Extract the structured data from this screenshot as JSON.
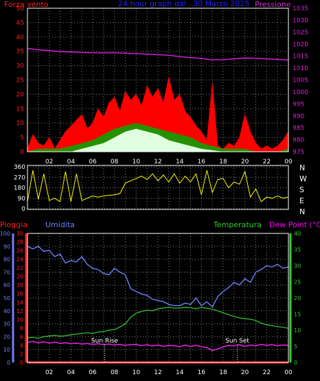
{
  "colors": {
    "wind_axis": "#ff2020",
    "title": "#2020ff",
    "pressure": "#e020e0",
    "wind_speed": "#ff0000",
    "wind_gust_area": "#00aa00",
    "wind_avg_area": "#e0ffe0",
    "direction": "#ffff00",
    "humidity": "#7080ff",
    "temperature": "#30d030",
    "dewpoint": "#e020e0",
    "rain": "#ff2020",
    "temp_axis": "#30d030",
    "dew_axis_label": "#ff00ff",
    "white": "#ffffff",
    "grid": "#8a8a8a"
  },
  "time_ticks": [
    "02",
    "04",
    "06",
    "08",
    "10",
    "12",
    "14",
    "16",
    "18",
    "20",
    "22",
    "00"
  ],
  "compass": [
    "N",
    "W",
    "S",
    "E",
    "N"
  ],
  "chart_data": [
    {
      "type": "line",
      "title": "24 hour graph dal ..30 Marzo 2025",
      "left_label": "Forza vento",
      "right_label": "Pressione",
      "left_ticks": [
        "0",
        "5",
        "10",
        "15",
        "20",
        "25",
        "30",
        "35",
        "40",
        "45",
        "50"
      ],
      "right_ticks": [
        "975",
        "980",
        "985",
        "990",
        "995",
        "1000",
        "1005",
        "1010",
        "1015",
        "1020",
        "1025",
        "1030",
        "1035"
      ],
      "ylim_left": [
        0,
        50
      ],
      "ylim_right": [
        975,
        1035
      ],
      "series": [
        {
          "axis": "right",
          "hours": [
            0,
            1,
            2,
            3,
            4,
            5,
            6,
            7,
            8,
            9,
            10,
            11,
            12,
            13,
            14,
            15,
            16,
            17,
            18,
            19,
            20,
            21,
            22,
            23,
            24
          ],
          "values": [
            1018.2,
            1017.6,
            1017.3,
            1016.9,
            1016.7,
            1016.5,
            1016.4,
            1016.3,
            1016.4,
            1016.2,
            1016.0,
            1015.8,
            1015.6,
            1015.3,
            1014.8,
            1014.4,
            1014.0,
            1013.4,
            1013.5,
            1013.8,
            1014.2,
            1014.1,
            1013.8,
            1013.6,
            1013.3
          ]
        },
        {
          "axis": "left",
          "hours": [
            0,
            0.5,
            1,
            1.5,
            2,
            2.5,
            3,
            3.5,
            4,
            4.5,
            5,
            5.5,
            6,
            6.5,
            7,
            7.5,
            8,
            8.5,
            9,
            9.5,
            10,
            10.5,
            11,
            11.5,
            12,
            12.5,
            13,
            13.5,
            14,
            14.5,
            15,
            15.5,
            16,
            16.5,
            17,
            17.5,
            18,
            18.5,
            19,
            19.5,
            20,
            20.5,
            21,
            21.5,
            22,
            22.5,
            23,
            23.5,
            24
          ],
          "values": [
            1,
            6,
            3,
            2,
            5,
            1,
            4,
            7,
            9,
            11,
            13,
            8,
            10,
            15,
            12,
            17,
            19,
            14,
            21,
            18,
            20,
            16,
            23,
            19,
            22,
            17,
            26,
            18,
            20,
            14,
            12,
            9,
            7,
            4,
            24,
            2,
            1,
            3,
            2,
            5,
            13,
            7,
            3,
            1,
            2,
            1,
            2,
            4,
            7
          ]
        },
        {
          "axis": "left",
          "hours": [
            0,
            1,
            2,
            3,
            4,
            5,
            6,
            7,
            8,
            9,
            10,
            11,
            12,
            13,
            14,
            15,
            16,
            17,
            18,
            19,
            20,
            21,
            22,
            23,
            24
          ],
          "values": [
            0,
            1,
            1,
            1,
            2,
            3,
            4,
            6,
            8,
            9,
            10,
            9,
            8,
            7,
            6,
            5,
            3,
            2,
            1,
            1,
            1,
            0,
            0,
            0,
            1
          ]
        },
        {
          "axis": "left",
          "hours": [
            0,
            2,
            4,
            5,
            6,
            7,
            8,
            9,
            10,
            11,
            12,
            13,
            14,
            15,
            16,
            18,
            20,
            22,
            24
          ],
          "values": [
            0,
            0,
            0,
            1,
            2,
            3,
            5,
            7,
            8,
            7,
            6,
            4,
            3,
            2,
            1,
            0,
            0,
            0,
            0
          ]
        }
      ]
    },
    {
      "type": "line",
      "title": "",
      "left_ticks": [
        "0",
        "90",
        "180",
        "270",
        "360"
      ],
      "ylim": [
        0,
        360
      ],
      "series": [
        {
          "hours": [
            0,
            0.5,
            1,
            1.5,
            2,
            2.5,
            3,
            3.5,
            4,
            4.5,
            5,
            5.5,
            6,
            6.5,
            7,
            7.5,
            8,
            8.5,
            9,
            9.5,
            10,
            10.5,
            11,
            11.5,
            12,
            12.5,
            13,
            13.5,
            14,
            14.5,
            15,
            15.5,
            16,
            16.5,
            17,
            17.5,
            18,
            18.5,
            19,
            19.5,
            20,
            20.5,
            21,
            21.5,
            22,
            22.5,
            23,
            23.5,
            24
          ],
          "values": [
            60,
            330,
            80,
            300,
            70,
            90,
            60,
            320,
            60,
            300,
            70,
            90,
            110,
            100,
            110,
            115,
            120,
            130,
            220,
            240,
            260,
            280,
            250,
            300,
            240,
            290,
            230,
            300,
            220,
            280,
            230,
            300,
            120,
            330,
            140,
            250,
            260,
            180,
            230,
            210,
            320,
            100,
            170,
            60,
            100,
            90,
            110,
            90,
            100
          ]
        }
      ]
    },
    {
      "type": "line",
      "title": "",
      "labels": {
        "rain": "Pioggia",
        "humidity": "Umidita",
        "temperature": "Temperatura",
        "dewpoint": "Dew Point (°C)"
      },
      "events": [
        "Sun Rise",
        "Sun Set"
      ],
      "event_hours": [
        7.1,
        19.3
      ],
      "humidity_ticks": [
        "0",
        "10",
        "20",
        "30",
        "40",
        "50",
        "60",
        "70",
        "80",
        "90",
        "100"
      ],
      "rain_ticks": [
        "0",
        "2",
        "4",
        "6",
        "8",
        "10",
        "12",
        "14",
        "16",
        "18",
        "20",
        "22",
        "24",
        "26",
        "28",
        "30"
      ],
      "temp_ticks": [
        "0",
        "5",
        "10",
        "15",
        "20",
        "25",
        "30",
        "35",
        "40"
      ],
      "ylim_humidity": [
        0,
        100
      ],
      "ylim_rain": [
        0,
        30
      ],
      "ylim_temp": [
        0,
        40
      ],
      "series": [
        {
          "name": "Umidita",
          "axis": "humidity",
          "hours": [
            0,
            0.5,
            1,
            1.5,
            2,
            2.5,
            3,
            3.5,
            4,
            4.5,
            5,
            5.5,
            6,
            6.5,
            7,
            7.5,
            8,
            8.5,
            9,
            9.5,
            10,
            10.5,
            11,
            11.5,
            12,
            12.5,
            13,
            13.5,
            14,
            14.5,
            15,
            15.5,
            16,
            16.5,
            17,
            17.5,
            18,
            18.5,
            19,
            19.5,
            20,
            20.5,
            21,
            21.5,
            22,
            22.5,
            23,
            23.5,
            24
          ],
          "values": [
            90,
            88,
            90,
            86,
            87,
            82,
            84,
            77,
            79,
            78,
            82,
            76,
            73,
            72,
            69,
            68,
            73,
            70,
            68,
            57,
            55,
            53,
            52,
            49,
            48,
            47,
            45,
            44,
            44,
            46,
            45,
            50,
            44,
            47,
            43,
            51,
            55,
            58,
            62,
            60,
            65,
            62,
            70,
            72,
            75,
            74,
            76,
            73,
            74
          ]
        },
        {
          "name": "Temperatura",
          "axis": "temp",
          "hours": [
            0,
            0.5,
            1,
            1.5,
            2,
            2.5,
            3,
            3.5,
            4,
            4.5,
            5,
            5.5,
            6,
            6.5,
            7,
            7.5,
            8,
            8.5,
            9,
            9.5,
            10,
            10.5,
            11,
            11.5,
            12,
            12.5,
            13,
            13.5,
            14,
            14.5,
            15,
            15.5,
            16,
            16.5,
            17,
            17.5,
            18,
            18.5,
            19,
            19.5,
            20,
            20.5,
            21,
            21.5,
            22,
            22.5,
            23,
            23.5,
            24
          ],
          "values": [
            7.6,
            7.8,
            7.5,
            8.0,
            8.2,
            8.4,
            8.1,
            8.3,
            8.6,
            8.8,
            9.0,
            9.2,
            9.0,
            9.4,
            9.6,
            10.0,
            10.2,
            11.0,
            12.0,
            14.0,
            15.3,
            15.8,
            16.2,
            16.0,
            16.6,
            16.9,
            17.2,
            16.8,
            16.9,
            17.1,
            17.0,
            16.6,
            17.1,
            16.8,
            16.5,
            16.0,
            15.4,
            14.8,
            14.3,
            13.8,
            13.6,
            13.4,
            13.0,
            12.2,
            11.7,
            11.4,
            11.1,
            10.9,
            10.6
          ]
        },
        {
          "name": "Dew Point (°C)",
          "axis": "temp",
          "hours": [
            0,
            0.5,
            1,
            1.5,
            2,
            2.5,
            3,
            3.5,
            4,
            4.5,
            5,
            5.5,
            6,
            6.5,
            7,
            7.5,
            8,
            8.5,
            9,
            9.5,
            10,
            10.5,
            11,
            11.5,
            12,
            12.5,
            13,
            13.5,
            14,
            14.5,
            15,
            15.5,
            16,
            16.5,
            17,
            17.5,
            18,
            18.5,
            19,
            19.5,
            20,
            20.5,
            21,
            21.5,
            22,
            22.5,
            23,
            23.5,
            24
          ],
          "values": [
            6.2,
            6.5,
            6.1,
            6.4,
            6.0,
            6.3,
            5.9,
            6.1,
            5.8,
            6.0,
            5.7,
            5.9,
            5.6,
            5.8,
            5.5,
            5.7,
            5.4,
            5.6,
            5.3,
            5.5,
            5.6,
            5.2,
            5.5,
            5.1,
            5.4,
            5.0,
            5.3,
            5.2,
            4.9,
            5.4,
            5.0,
            5.3,
            4.9,
            4.6,
            3.7,
            4.2,
            4.8,
            5.3,
            5.2,
            5.5,
            5.0,
            5.4,
            5.2,
            5.6,
            5.3,
            5.5,
            5.2,
            5.4,
            5.3
          ]
        },
        {
          "name": "Pioggia",
          "axis": "rain",
          "hours": [
            0,
            24
          ],
          "values": [
            0,
            0
          ]
        }
      ]
    }
  ]
}
